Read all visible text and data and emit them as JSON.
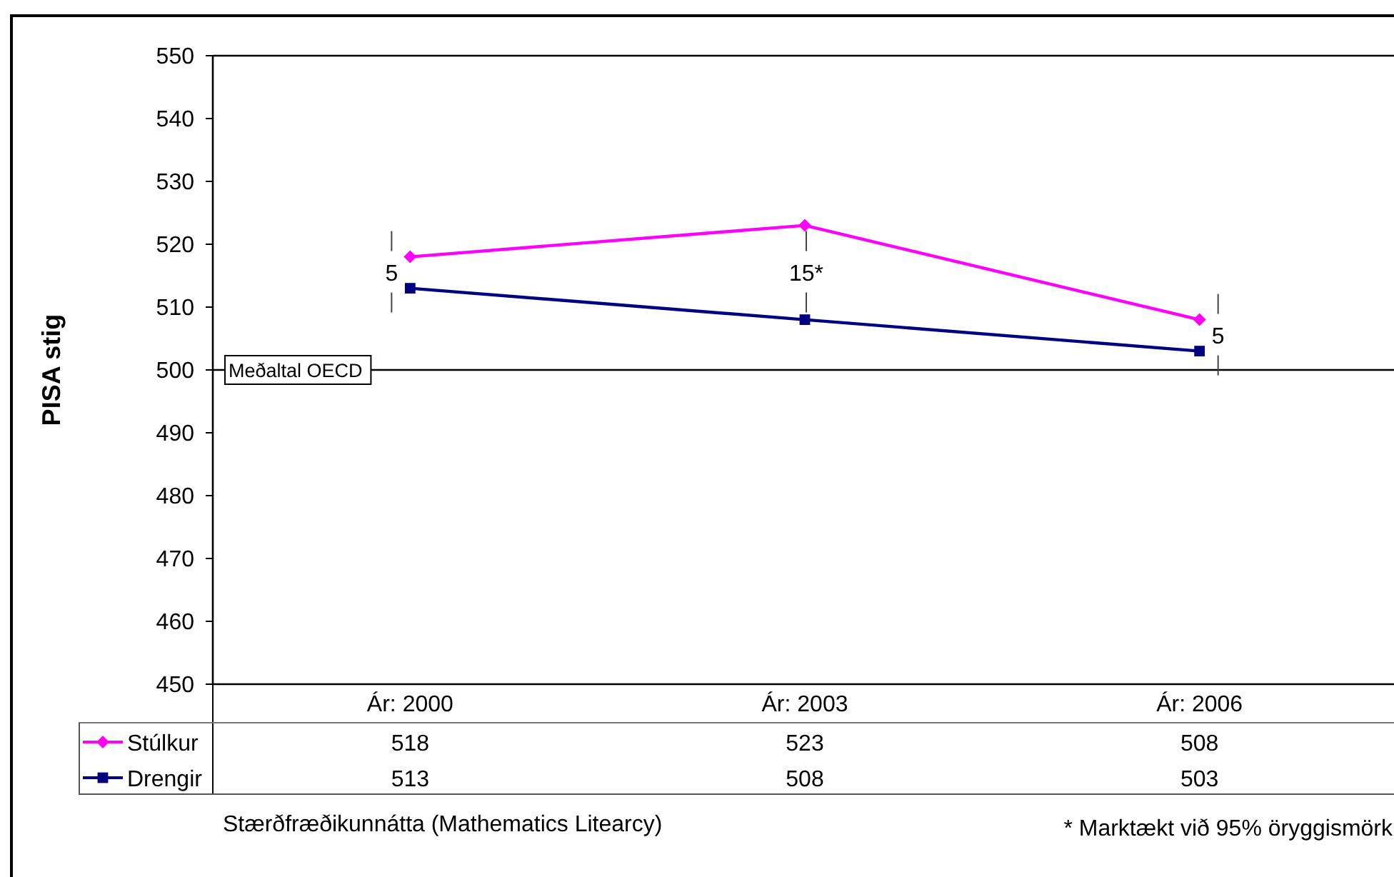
{
  "chart_data": {
    "type": "line",
    "ylabel": "PISA stig",
    "categories": [
      "Ár: 2000",
      "Ár: 2003",
      "Ár: 2006"
    ],
    "series": [
      {
        "name": "Stúlkur",
        "color": "#ff00ff",
        "marker": "diamond",
        "values": [
          518,
          523,
          508
        ]
      },
      {
        "name": "Drengir",
        "color": "#000080",
        "marker": "square",
        "values": [
          513,
          508,
          503
        ]
      }
    ],
    "ylim": [
      450,
      550
    ],
    "yticks": [
      450,
      460,
      470,
      480,
      490,
      500,
      510,
      520,
      530,
      540,
      550
    ],
    "ref_lines": [
      {
        "axis": "y",
        "value": 500,
        "label": "Meðaltal OECD",
        "color": "#000000"
      }
    ],
    "annotations": [
      "5",
      "15*",
      "5",
      "Stærðfræðikunnátta (Mathematics Litearcy)",
      "* Marktækt við 95% öryggismörk"
    ],
    "data_labels": true,
    "legend": "bottom left",
    "line_style": "solid"
  }
}
